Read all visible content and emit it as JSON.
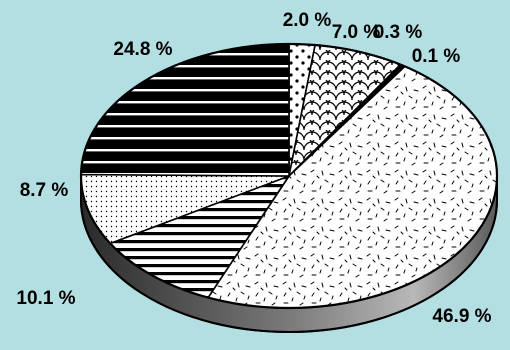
{
  "chart_data": {
    "type": "pie",
    "style": "3d-tilted",
    "labels": [
      "2.0 %",
      "7.0 %",
      "0.3 %",
      "0.1 %",
      "46.9 %",
      "10.1 %",
      "8.7 %",
      "24.8 %"
    ],
    "values": [
      2.0,
      7.0,
      0.3,
      0.1,
      46.9,
      10.1,
      8.7,
      24.8
    ],
    "patterns": [
      "dots",
      "scallop",
      "solid-black",
      "solid-black",
      "speckle",
      "horizontal-lines",
      "fine-dots",
      "black-with-white-lines"
    ],
    "start_direction": "12 o'clock",
    "direction": "clockwise",
    "title": "",
    "legend": "none",
    "background": "#b4dfe2"
  }
}
